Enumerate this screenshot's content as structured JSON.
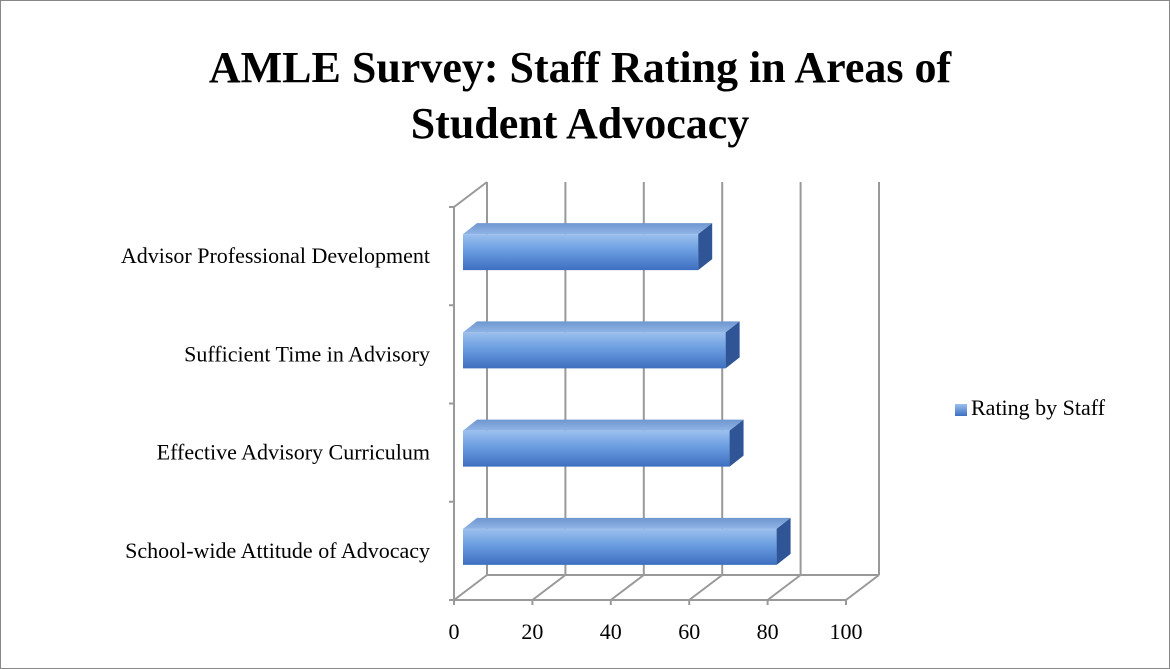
{
  "chart_data": {
    "type": "hbar3d",
    "title": "AMLE Survey: Staff Rating in Areas of",
    "title_line2": "Student Advocacy",
    "categories": [
      "School-wide Attitude of Advocacy",
      "Effective Advisory Curriculum",
      "Sufficient Time in Advisory",
      "Advisor Professional Development"
    ],
    "series": [
      {
        "name": "Rating by Staff",
        "color": "#4f81bd",
        "values": [
          80,
          68,
          67,
          60
        ]
      }
    ],
    "xlim": [
      0,
      100
    ],
    "xticks": [
      0,
      20,
      40,
      60,
      80,
      100
    ],
    "grid": true,
    "legend": "right"
  }
}
